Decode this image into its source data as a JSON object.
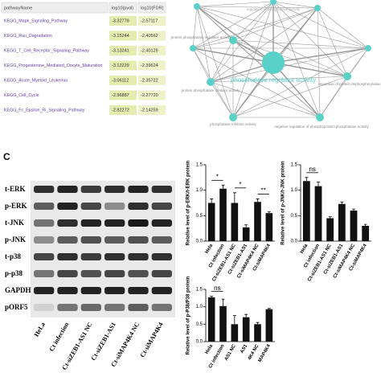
{
  "table": {
    "header": [
      "pathwayName",
      "log10(pval)",
      "log10(FDR)"
    ],
    "rows": [
      [
        "KEGG_Mapk_Signaling_Pathway",
        "-3.32778",
        "-2.57117"
      ],
      [
        "KEGG_Rau_Dagradation",
        "-3.15244",
        "-2.40562"
      ],
      [
        "KEGG_T_Cell_Receptor_Signaling_Pathway",
        "-3.13241",
        "-2.40129"
      ],
      [
        "KEGG_Progesterone_Mediated_Oocyte_Maturation",
        "-3.12229",
        "-2.39624"
      ],
      [
        "KEGG_Acute_Myeloid_Leukemia",
        "-3.06112",
        "-2.35722"
      ],
      [
        "KEGG_Cell_Cycle",
        "-2.96887",
        "-2.27720"
      ],
      [
        "KEGG_Fc_Epsilon_Ri_Signaling_Pathway",
        "-2.82272",
        "-2.14259"
      ]
    ]
  },
  "network": {
    "nodes": [
      {
        "label": "phosphatase regulator activity"
      },
      {
        "label": "protein phosphatase regulator activity"
      },
      {
        "label": "protein phosphatase inhibitor activity"
      },
      {
        "label": "phosphatase inhibitor activity"
      },
      {
        "label": "negative regulation of phosphoprotein phosphatase activity"
      },
      {
        "label": "regulation of protein dephosphorylation"
      },
      {
        "label": "regulation of phosphatase activity"
      }
    ]
  },
  "panel_label": "C",
  "blot": {
    "rows": [
      "t-ERK",
      "p-ERK",
      "t-JNK",
      "p-JNK",
      "t-p38",
      "p-p38",
      "GAPDH",
      "pORF5"
    ],
    "columns": [
      "HeLa",
      "Ct infection",
      "Ct-siZEB1-AS1 NC",
      "Ct-siZEB1-AS1",
      "Ct-siMAP4K4 NC",
      "Ct-siMAP4K4"
    ]
  },
  "charts": [
    {
      "type": "bar",
      "ylabel": "Relative level of p-ERK/t-ERK protein",
      "categories": [
        "Hela",
        "Ct infection",
        "Ct-siZEB1-AS1 NC",
        "Ct-siZEB1-AS1",
        "Ct-siMAP4K4 NC",
        "Ct-siMAP4K4"
      ],
      "values": [
        0.75,
        1.03,
        0.75,
        0.27,
        0.77,
        0.55
      ],
      "errors": [
        0.08,
        0.07,
        0.2,
        0.05,
        0.06,
        0.03
      ],
      "color": "#111111",
      "ylim": [
        0,
        1.5
      ],
      "yticks": [
        {
          "value": 0,
          "label": "0.0"
        },
        0.5,
        {
          "value": 1,
          "label": "1.0"
        },
        1.5
      ],
      "annotations": [
        "*",
        "*",
        "**"
      ]
    },
    {
      "type": "bar",
      "ylabel": "Relative level of p-JNK/t-JNK protein",
      "categories": [
        "Hela",
        "Ct infection",
        "Ct-siZEB1-AS1 NC",
        "Ct-siZEB1-AS1",
        "Ct-siMAP4K4 NC",
        "Ct-siMAP4K4"
      ],
      "values": [
        1.18,
        1.08,
        0.45,
        0.73,
        0.6,
        0.3
      ],
      "errors": [
        0.07,
        0.08,
        0.03,
        0.04,
        0.03,
        0.03
      ],
      "color": "#111111",
      "ylim": [
        0,
        1.5
      ],
      "yticks": [
        {
          "value": 0,
          "label": "0.0"
        },
        0.5,
        {
          "value": 1,
          "label": "1.0"
        },
        1.5
      ],
      "annotations": [
        "ns"
      ]
    },
    {
      "type": "bar",
      "ylabel": "Relative level of p-P38/P38 protein",
      "categories": [
        "Hela",
        "Ct infection",
        "AS1 NC",
        "AS1",
        "4K4 NC",
        "MAP4K4"
      ],
      "values": [
        1.27,
        1.02,
        0.5,
        0.7,
        0.5,
        0.93
      ],
      "errors": [
        0.03,
        0.2,
        0.25,
        0.08,
        0.05,
        0.02
      ],
      "color": "#111111",
      "ylim": [
        0,
        1.5
      ],
      "yticks": [
        {
          "value": 0,
          "label": "0.0"
        },
        0.5,
        {
          "value": 1,
          "label": "1.0"
        },
        1.5
      ],
      "annotations": [
        "ns"
      ]
    }
  ]
}
